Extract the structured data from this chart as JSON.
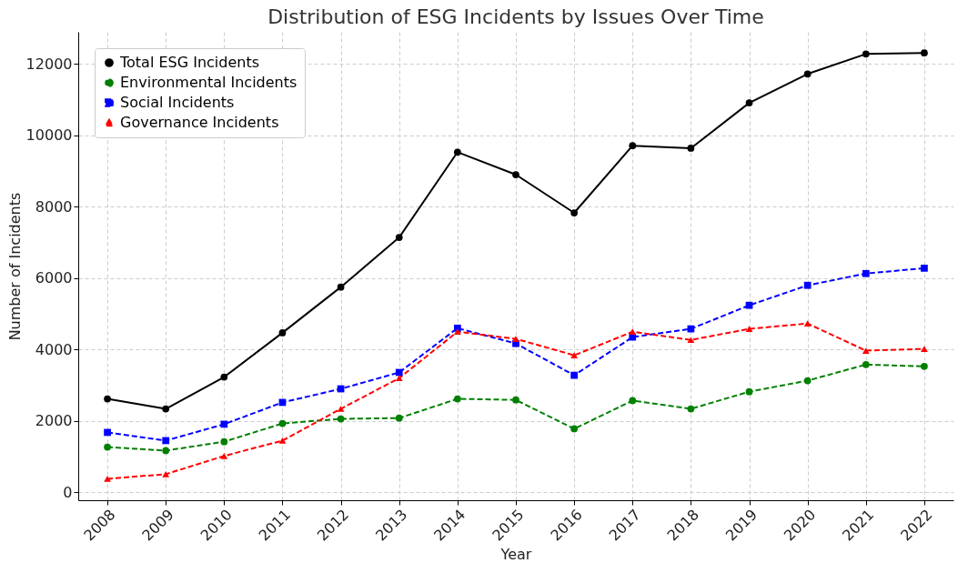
{
  "chart_data": {
    "type": "line",
    "title": "Distribution of ESG Incidents by Issues Over Time",
    "xlabel": "Year",
    "ylabel": "Number of Incidents",
    "categories": [
      "2008",
      "2009",
      "2010",
      "2011",
      "2012",
      "2013",
      "2014",
      "2015",
      "2016",
      "2017",
      "2018",
      "2019",
      "2020",
      "2021",
      "2022"
    ],
    "series": [
      {
        "name": "Total ESG Incidents",
        "color": "#000000",
        "marker": "circle",
        "line_style": "solid",
        "values": [
          2620,
          2340,
          3230,
          4470,
          5750,
          7140,
          9530,
          8900,
          7830,
          9710,
          9640,
          10910,
          11720,
          12280,
          12310
        ]
      },
      {
        "name": "Environmental Incidents",
        "color": "#008000",
        "marker": "circle",
        "line_style": "dashed",
        "values": [
          1270,
          1170,
          1420,
          1930,
          2060,
          2080,
          2620,
          2590,
          1780,
          2570,
          2340,
          2820,
          3130,
          3580,
          3530
        ]
      },
      {
        "name": "Social Incidents",
        "color": "#0000ff",
        "marker": "square",
        "line_style": "dashed",
        "values": [
          1680,
          1450,
          1910,
          2520,
          2900,
          3360,
          4600,
          4170,
          3280,
          4350,
          4580,
          5240,
          5800,
          6130,
          6280
        ]
      },
      {
        "name": "Governance Incidents",
        "color": "#ff0000",
        "marker": "triangle",
        "line_style": "dashed",
        "values": [
          380,
          510,
          1020,
          1450,
          2340,
          3200,
          4500,
          4300,
          3840,
          4500,
          4270,
          4580,
          4730,
          3970,
          4020
        ]
      }
    ],
    "ylim": [
      -220,
      12900
    ],
    "yticks": [
      0,
      2000,
      4000,
      6000,
      8000,
      10000,
      12000
    ],
    "grid": true,
    "legend": "top left"
  }
}
